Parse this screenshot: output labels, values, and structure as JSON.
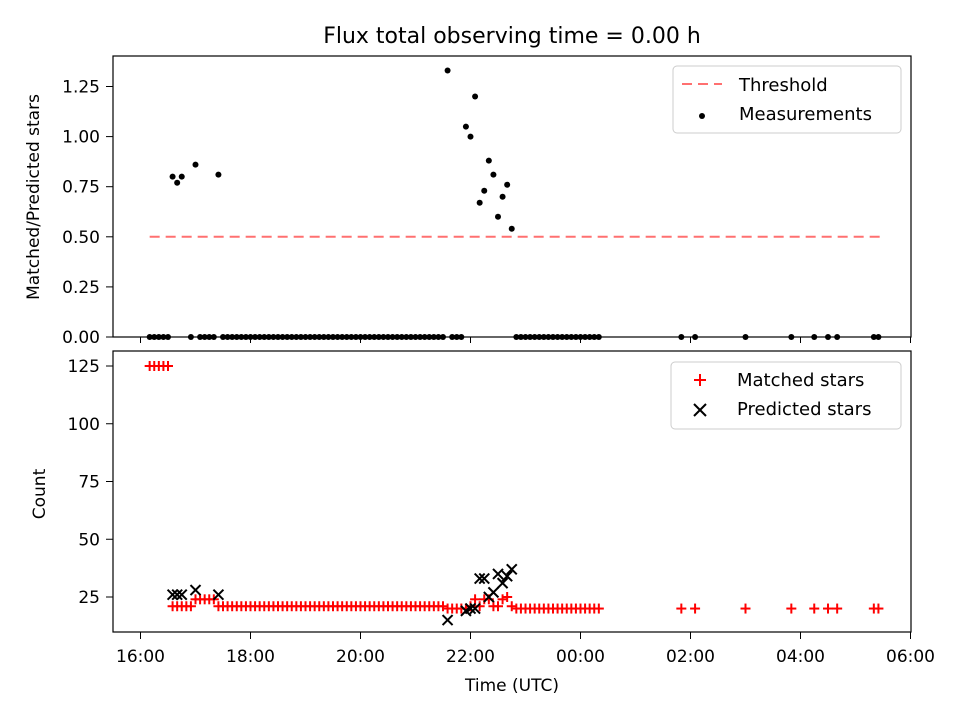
{
  "title": "Flux total observing time = 0.00 h",
  "chart_data": [
    {
      "type": "scatter",
      "ylabel": "Matched/Predicted stars",
      "xlabel": "",
      "ylim": [
        0,
        1.4
      ],
      "xlim": [
        "16:00",
        "06:00"
      ],
      "y_ticks": [
        "0.00",
        "0.25",
        "0.50",
        "0.75",
        "1.00",
        "1.25"
      ],
      "y_tick_values": [
        0,
        0.25,
        0.5,
        0.75,
        1.0,
        1.25
      ],
      "legend_placement": "top-right",
      "threshold": {
        "name": "Threshold",
        "value": 0.5,
        "x_start": "16:10",
        "x_end": "05:30",
        "color": "#ff7070",
        "style": "dashed"
      },
      "series": [
        {
          "name": "Measurements",
          "marker": "dot",
          "color": "#000000",
          "points": [
            [
              "16:10",
              0
            ],
            [
              "16:15",
              0
            ],
            [
              "16:20",
              0
            ],
            [
              "16:25",
              0
            ],
            [
              "16:30",
              0
            ],
            [
              "16:35",
              0.8
            ],
            [
              "16:40",
              0.77
            ],
            [
              "16:45",
              0.8
            ],
            [
              "16:55",
              0
            ],
            [
              "17:00",
              0.86
            ],
            [
              "17:05",
              0
            ],
            [
              "17:10",
              0
            ],
            [
              "17:15",
              0
            ],
            [
              "17:20",
              0
            ],
            [
              "17:25",
              0.81
            ],
            [
              "17:30",
              0
            ],
            [
              "17:35",
              0
            ],
            [
              "17:40",
              0
            ],
            [
              "17:45",
              0
            ],
            [
              "17:50",
              0
            ],
            [
              "17:55",
              0
            ],
            [
              "18:00",
              0
            ],
            [
              "18:05",
              0
            ],
            [
              "18:10",
              0
            ],
            [
              "18:15",
              0
            ],
            [
              "18:20",
              0
            ],
            [
              "18:25",
              0
            ],
            [
              "18:30",
              0
            ],
            [
              "18:35",
              0
            ],
            [
              "18:40",
              0
            ],
            [
              "18:45",
              0
            ],
            [
              "18:50",
              0
            ],
            [
              "18:55",
              0
            ],
            [
              "19:00",
              0
            ],
            [
              "19:05",
              0
            ],
            [
              "19:10",
              0
            ],
            [
              "19:15",
              0
            ],
            [
              "19:20",
              0
            ],
            [
              "19:25",
              0
            ],
            [
              "19:30",
              0
            ],
            [
              "19:35",
              0
            ],
            [
              "19:40",
              0
            ],
            [
              "19:45",
              0
            ],
            [
              "19:50",
              0
            ],
            [
              "19:55",
              0
            ],
            [
              "20:00",
              0
            ],
            [
              "20:05",
              0
            ],
            [
              "20:10",
              0
            ],
            [
              "20:15",
              0
            ],
            [
              "20:20",
              0
            ],
            [
              "20:25",
              0
            ],
            [
              "20:30",
              0
            ],
            [
              "20:35",
              0
            ],
            [
              "20:40",
              0
            ],
            [
              "20:45",
              0
            ],
            [
              "20:50",
              0
            ],
            [
              "20:55",
              0
            ],
            [
              "21:00",
              0
            ],
            [
              "21:05",
              0
            ],
            [
              "21:10",
              0
            ],
            [
              "21:15",
              0
            ],
            [
              "21:20",
              0
            ],
            [
              "21:25",
              0
            ],
            [
              "21:30",
              0
            ],
            [
              "21:35",
              1.33
            ],
            [
              "21:40",
              0
            ],
            [
              "21:45",
              0
            ],
            [
              "21:50",
              0
            ],
            [
              "21:55",
              1.05
            ],
            [
              "22:00",
              1.0
            ],
            [
              "22:05",
              1.2
            ],
            [
              "22:10",
              0.67
            ],
            [
              "22:15",
              0.73
            ],
            [
              "22:20",
              0.88
            ],
            [
              "22:25",
              0.81
            ],
            [
              "22:30",
              0.6
            ],
            [
              "22:35",
              0.7
            ],
            [
              "22:40",
              0.76
            ],
            [
              "22:45",
              0.54
            ],
            [
              "22:50",
              0
            ],
            [
              "22:55",
              0
            ],
            [
              "23:00",
              0
            ],
            [
              "23:05",
              0
            ],
            [
              "23:10",
              0
            ],
            [
              "23:15",
              0
            ],
            [
              "23:20",
              0
            ],
            [
              "23:25",
              0
            ],
            [
              "23:30",
              0
            ],
            [
              "23:35",
              0
            ],
            [
              "23:40",
              0
            ],
            [
              "23:45",
              0
            ],
            [
              "23:50",
              0
            ],
            [
              "23:55",
              0
            ],
            [
              "00:00",
              0
            ],
            [
              "00:05",
              0
            ],
            [
              "00:10",
              0
            ],
            [
              "00:15",
              0
            ],
            [
              "00:20",
              0
            ],
            [
              "01:50",
              0
            ],
            [
              "02:05",
              0
            ],
            [
              "03:00",
              0
            ],
            [
              "03:50",
              0
            ],
            [
              "04:15",
              0
            ],
            [
              "04:30",
              0
            ],
            [
              "04:40",
              0
            ],
            [
              "05:20",
              0
            ],
            [
              "05:25",
              0
            ]
          ]
        }
      ]
    },
    {
      "type": "scatter",
      "ylabel": "Count",
      "xlabel": "Time (UTC)",
      "ylim": [
        10,
        131
      ],
      "xlim": [
        "16:00",
        "06:00"
      ],
      "y_ticks": [
        "25",
        "50",
        "75",
        "100",
        "125"
      ],
      "y_tick_values": [
        25,
        50,
        75,
        100,
        125
      ],
      "x_ticks": [
        "16:00",
        "18:00",
        "20:00",
        "22:00",
        "00:00",
        "02:00",
        "04:00",
        "06:00"
      ],
      "legend_placement": "top-right",
      "series": [
        {
          "name": "Matched stars",
          "marker": "plus",
          "color": "#ff0000",
          "points": [
            [
              "16:10",
              125
            ],
            [
              "16:15",
              125
            ],
            [
              "16:20",
              125
            ],
            [
              "16:25",
              125
            ],
            [
              "16:30",
              125
            ],
            [
              "16:35",
              21
            ],
            [
              "16:40",
              21
            ],
            [
              "16:45",
              21
            ],
            [
              "16:50",
              21
            ],
            [
              "16:55",
              21
            ],
            [
              "17:00",
              24
            ],
            [
              "17:05",
              24
            ],
            [
              "17:10",
              24
            ],
            [
              "17:15",
              24
            ],
            [
              "17:20",
              24
            ],
            [
              "17:25",
              21
            ],
            [
              "17:30",
              21
            ],
            [
              "17:35",
              21
            ],
            [
              "17:40",
              21
            ],
            [
              "17:45",
              21
            ],
            [
              "17:50",
              21
            ],
            [
              "17:55",
              21
            ],
            [
              "18:00",
              21
            ],
            [
              "18:05",
              21
            ],
            [
              "18:10",
              21
            ],
            [
              "18:15",
              21
            ],
            [
              "18:20",
              21
            ],
            [
              "18:25",
              21
            ],
            [
              "18:30",
              21
            ],
            [
              "18:35",
              21
            ],
            [
              "18:40",
              21
            ],
            [
              "18:45",
              21
            ],
            [
              "18:50",
              21
            ],
            [
              "18:55",
              21
            ],
            [
              "19:00",
              21
            ],
            [
              "19:05",
              21
            ],
            [
              "19:10",
              21
            ],
            [
              "19:15",
              21
            ],
            [
              "19:20",
              21
            ],
            [
              "19:25",
              21
            ],
            [
              "19:30",
              21
            ],
            [
              "19:35",
              21
            ],
            [
              "19:40",
              21
            ],
            [
              "19:45",
              21
            ],
            [
              "19:50",
              21
            ],
            [
              "19:55",
              21
            ],
            [
              "20:00",
              21
            ],
            [
              "20:05",
              21
            ],
            [
              "20:10",
              21
            ],
            [
              "20:15",
              21
            ],
            [
              "20:20",
              21
            ],
            [
              "20:25",
              21
            ],
            [
              "20:30",
              21
            ],
            [
              "20:35",
              21
            ],
            [
              "20:40",
              21
            ],
            [
              "20:45",
              21
            ],
            [
              "20:50",
              21
            ],
            [
              "20:55",
              21
            ],
            [
              "21:00",
              21
            ],
            [
              "21:05",
              21
            ],
            [
              "21:10",
              21
            ],
            [
              "21:15",
              21
            ],
            [
              "21:20",
              21
            ],
            [
              "21:25",
              21
            ],
            [
              "21:30",
              21
            ],
            [
              "21:35",
              20
            ],
            [
              "21:40",
              20
            ],
            [
              "21:45",
              20
            ],
            [
              "21:50",
              20
            ],
            [
              "21:55",
              20
            ],
            [
              "22:00",
              21
            ],
            [
              "22:05",
              24
            ],
            [
              "22:10",
              21
            ],
            [
              "22:15",
              24
            ],
            [
              "22:20",
              24
            ],
            [
              "22:25",
              21
            ],
            [
              "22:30",
              21
            ],
            [
              "22:35",
              24
            ],
            [
              "22:40",
              25
            ],
            [
              "22:45",
              21
            ],
            [
              "22:50",
              20
            ],
            [
              "22:55",
              20
            ],
            [
              "23:00",
              20
            ],
            [
              "23:05",
              20
            ],
            [
              "23:10",
              20
            ],
            [
              "23:15",
              20
            ],
            [
              "23:20",
              20
            ],
            [
              "23:25",
              20
            ],
            [
              "23:30",
              20
            ],
            [
              "23:35",
              20
            ],
            [
              "23:40",
              20
            ],
            [
              "23:45",
              20
            ],
            [
              "23:50",
              20
            ],
            [
              "23:55",
              20
            ],
            [
              "00:00",
              20
            ],
            [
              "00:05",
              20
            ],
            [
              "00:10",
              20
            ],
            [
              "00:15",
              20
            ],
            [
              "00:20",
              20
            ],
            [
              "01:50",
              20
            ],
            [
              "02:05",
              20
            ],
            [
              "03:00",
              20
            ],
            [
              "03:50",
              20
            ],
            [
              "04:15",
              20
            ],
            [
              "04:30",
              20
            ],
            [
              "04:40",
              20
            ],
            [
              "05:20",
              20
            ],
            [
              "05:25",
              20
            ]
          ]
        },
        {
          "name": "Predicted stars",
          "marker": "x",
          "color": "#000000",
          "points": [
            [
              "16:35",
              26
            ],
            [
              "16:40",
              26
            ],
            [
              "16:45",
              26
            ],
            [
              "17:00",
              28
            ],
            [
              "17:25",
              26
            ],
            [
              "21:35",
              15
            ],
            [
              "21:55",
              19
            ],
            [
              "22:00",
              20
            ],
            [
              "22:05",
              20
            ],
            [
              "22:10",
              33
            ],
            [
              "22:15",
              33
            ],
            [
              "22:20",
              25
            ],
            [
              "22:25",
              27
            ],
            [
              "22:30",
              35
            ],
            [
              "22:35",
              31
            ],
            [
              "22:40",
              34
            ],
            [
              "22:45",
              37
            ]
          ]
        }
      ]
    }
  ]
}
